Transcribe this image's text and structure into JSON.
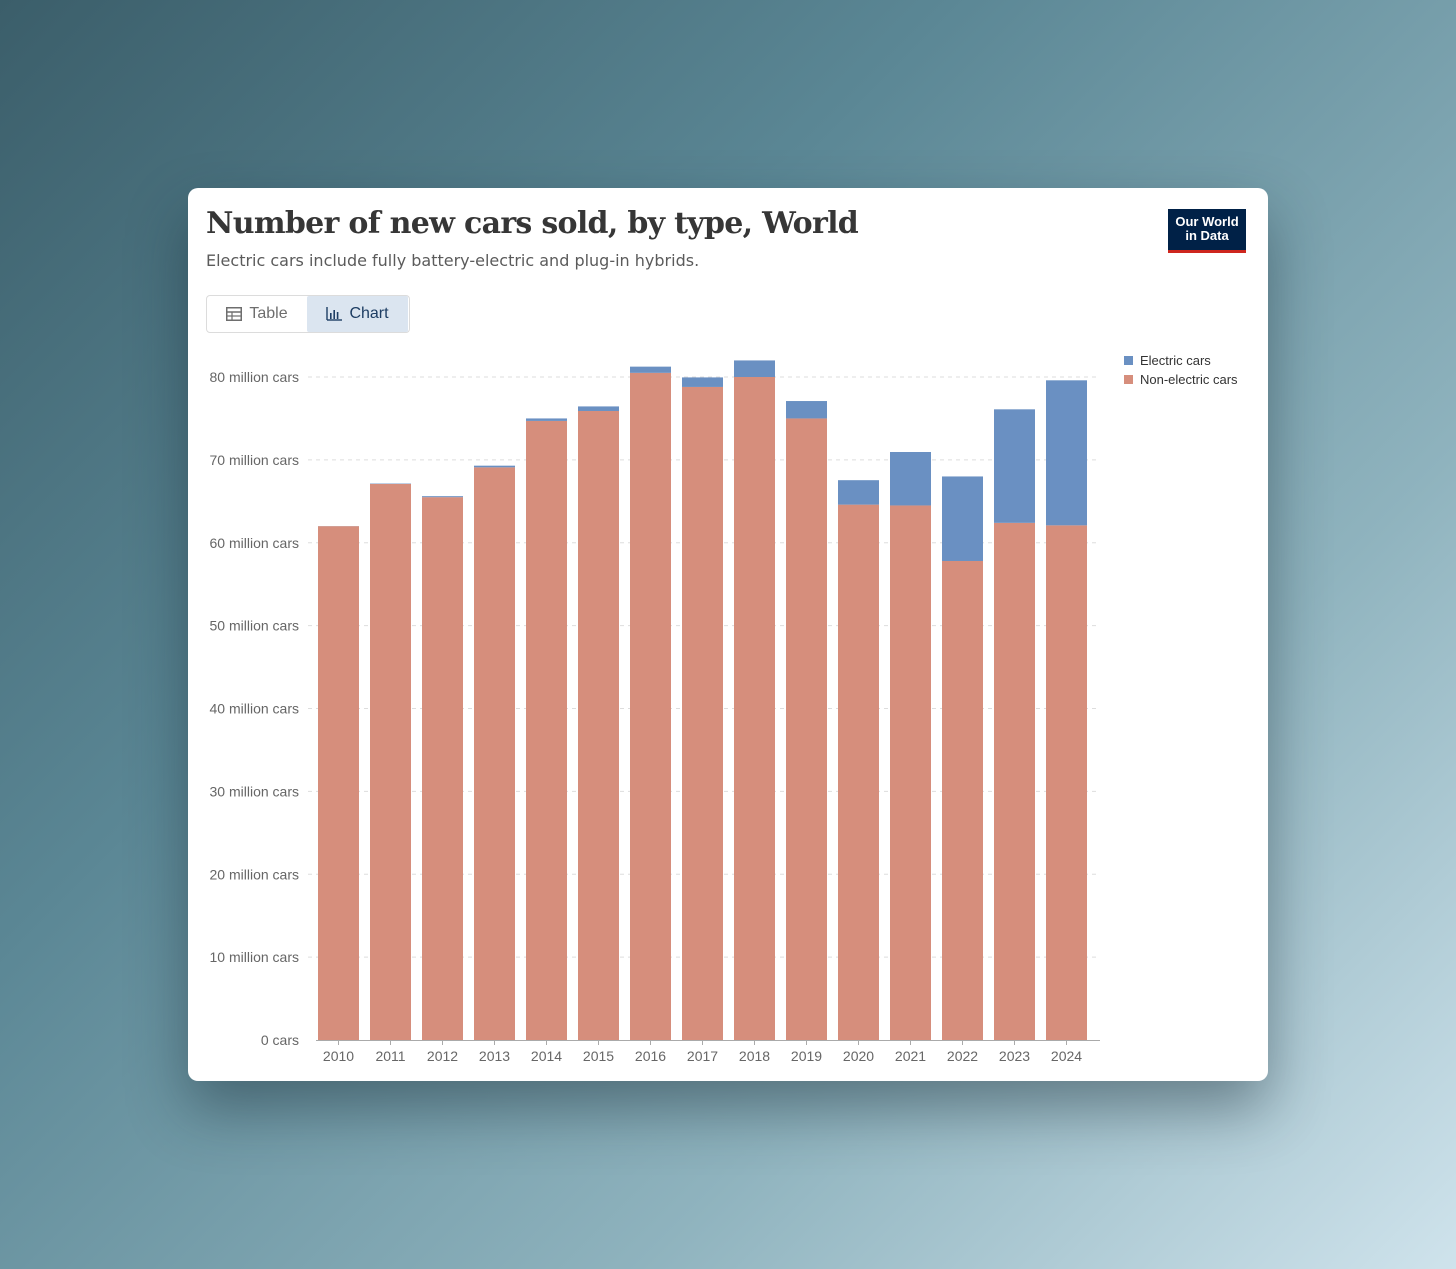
{
  "header": {
    "title": "Number of new cars sold, by type, World",
    "subtitle": "Electric cars include fully battery-electric and plug-in hybrids.",
    "logo_line1": "Our World",
    "logo_line2": "in Data"
  },
  "tabs": [
    {
      "label": "Table",
      "icon": "table-icon",
      "active": false
    },
    {
      "label": "Chart",
      "icon": "bar-chart-icon",
      "active": true
    }
  ],
  "colors": {
    "electric": "#6a90c2",
    "non_electric": "#d68e7c",
    "logo_bg": "#002147",
    "logo_accent": "#ce261e"
  },
  "chart_data": {
    "type": "bar",
    "stacked": true,
    "categories": [
      "2010",
      "2011",
      "2012",
      "2013",
      "2014",
      "2015",
      "2016",
      "2017",
      "2018",
      "2019",
      "2020",
      "2021",
      "2022",
      "2023",
      "2024"
    ],
    "series": [
      {
        "name": "Non-electric cars",
        "values": [
          62.0,
          67.1,
          65.5,
          69.1,
          74.7,
          75.9,
          80.5,
          78.8,
          80.0,
          75.0,
          64.6,
          64.5,
          57.8,
          62.4,
          62.1
        ]
      },
      {
        "name": "Electric cars",
        "values": [
          0.01,
          0.05,
          0.12,
          0.2,
          0.3,
          0.55,
          0.75,
          1.15,
          2.0,
          2.1,
          2.95,
          6.45,
          10.2,
          13.7,
          17.5
        ]
      }
    ],
    "legend": [
      "Electric cars",
      "Non-electric cars"
    ],
    "legend_position": "top-right",
    "ylim": [
      0,
      80
    ],
    "y_ticks": [
      0,
      10,
      20,
      30,
      40,
      50,
      60,
      70,
      80
    ],
    "y_tick_labels": [
      "0 cars",
      "10 million cars",
      "20 million cars",
      "30 million cars",
      "40 million cars",
      "50 million cars",
      "60 million cars",
      "70 million cars",
      "80 million cars"
    ],
    "grid": "horizontal dashed"
  }
}
